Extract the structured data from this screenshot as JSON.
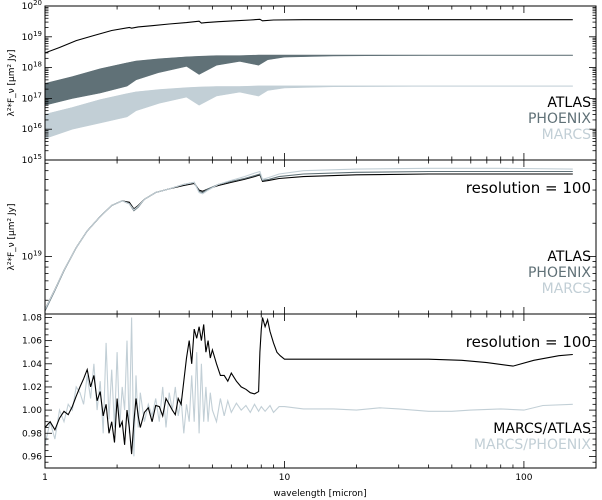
{
  "colors": {
    "atlas": "#000000",
    "phoenix": "#607177",
    "marcs": "#c2cfd6",
    "axis": "#000000"
  },
  "chart_data": [
    {
      "panel": "top",
      "type": "line",
      "xscale": "log",
      "yscale": "log",
      "xlim": [
        1,
        200
      ],
      "ylim": [
        1000000000000000.0,
        1e+20
      ],
      "ylabel": "λ²*F_ν [μm² Jy]",
      "ytick_labels": [
        "10^15",
        "10^16",
        "10^17",
        "10^18",
        "10^19",
        "10^20"
      ],
      "ytick_values": [
        1000000000000000.0,
        1e+16,
        1e+17,
        1e+18,
        1e+19,
        1e+20
      ],
      "legend": {
        "position": "lower-right",
        "entries": [
          "ATLAS",
          "PHOENIX",
          "MARCS"
        ]
      },
      "series": [
        {
          "name": "ATLAS",
          "color_key": "atlas",
          "style": "line",
          "x": [
            1,
            1.15,
            1.35,
            1.6,
            1.9,
            2.25,
            2.3,
            2.45,
            2.8,
            3.3,
            3.9,
            4.4,
            4.5,
            4.7,
            5.3,
            6.2,
            7.2,
            7.9,
            8.1,
            9,
            12,
            20,
            40,
            80,
            160
          ],
          "y": [
            3e+18,
            4.5e+18,
            7.5e+18,
            1.1e+19,
            1.6e+19,
            2e+19,
            1.9e+19,
            2.1e+19,
            2.3e+19,
            2.6e+19,
            2.9e+19,
            3.2e+19,
            2.8e+19,
            2.9e+19,
            3.1e+19,
            3.3e+19,
            3.5e+19,
            3.7e+19,
            3.3e+19,
            3.5e+19,
            3.6e+19,
            3.6e+19,
            3.6e+19,
            3.6e+19,
            3.6e+19
          ]
        },
        {
          "name": "PHOENIX",
          "color_key": "phoenix",
          "style": "band",
          "x": [
            1,
            1.3,
            1.7,
            2.2,
            2.4,
            3.0,
            3.9,
            4.4,
            5.2,
            6.5,
            7.8,
            8.5,
            10,
            16,
            40,
            160
          ],
          "y_top": [
            3e+17,
            5e+17,
            9e+17,
            1.4e+18,
            1.6e+18,
            1.9e+18,
            2.2e+18,
            2.3e+18,
            2.4e+18,
            2.4e+18,
            2.5e+18,
            2.5e+18,
            2.5e+18,
            2.5e+18,
            2.5e+18,
            2.5e+18
          ],
          "y_bottom": [
            6e+16,
            1e+17,
            1.5e+17,
            2.5e+17,
            4e+17,
            7e+17,
            1.1e+18,
            6e+17,
            1.2e+18,
            1.6e+18,
            1.2e+18,
            1.8e+18,
            2.2e+18,
            2.4e+18,
            2.5e+18,
            2.5e+18
          ]
        },
        {
          "name": "MARCS",
          "color_key": "marcs",
          "style": "band",
          "x": [
            1,
            1.3,
            1.7,
            2.2,
            2.4,
            3.0,
            3.9,
            4.4,
            5.2,
            6.5,
            7.8,
            8.5,
            10,
            16,
            40,
            160
          ],
          "y_top": [
            3e+16,
            5e+16,
            9e+16,
            1.4e+17,
            1.6e+17,
            1.9e+17,
            2.2e+17,
            2.3e+17,
            2.4e+17,
            2.4e+17,
            2.5e+17,
            2.5e+17,
            2.5e+17,
            2.5e+17,
            2.5e+17,
            2.5e+17
          ],
          "y_bottom": [
            5000000000000000.0,
            1e+16,
            1.6e+16,
            2.5e+16,
            4e+16,
            7e+16,
            1.1e+17,
            6e+16,
            1.2e+17,
            1.6e+17,
            1.2e+17,
            1.8e+17,
            2.2e+17,
            2.4e+17,
            2.5e+17,
            2.5e+17
          ]
        }
      ]
    },
    {
      "panel": "middle",
      "type": "line",
      "xscale": "log",
      "yscale": "log",
      "xlim": [
        1,
        200
      ],
      "ylim": [
        3e+18,
        7.5e+19
      ],
      "ylabel": "λ²*F_ν [μm² Jy]",
      "ytick_labels": [
        "10^19"
      ],
      "ytick_values": [
        1e+19
      ],
      "annotation": "resolution = 100",
      "legend": {
        "position": "lower-right",
        "entries": [
          "ATLAS",
          "PHOENIX",
          "MARCS"
        ]
      },
      "series": [
        {
          "name": "ATLAS",
          "color_key": "atlas",
          "x": [
            1,
            1.1,
            1.2,
            1.35,
            1.5,
            1.7,
            1.9,
            2.1,
            2.25,
            2.35,
            2.45,
            2.6,
            2.9,
            3.3,
            3.8,
            4.2,
            4.4,
            4.55,
            4.8,
            5.3,
            6.0,
            6.8,
            7.5,
            7.9,
            8.1,
            8.6,
            9.5,
            12,
            20,
            40,
            80,
            160
          ],
          "y": [
            3.3e+18,
            5e+18,
            7.5e+18,
            1.2e+19,
            1.7e+19,
            2.3e+19,
            2.9e+19,
            3.2e+19,
            3.1e+19,
            2.7e+19,
            2.9e+19,
            3.3e+19,
            3.8e+19,
            4.1e+19,
            4.4e+19,
            4.6e+19,
            4e+19,
            3.9e+19,
            4.1e+19,
            4.4e+19,
            4.7e+19,
            5e+19,
            5.3e+19,
            5.5e+19,
            4.8e+19,
            4.9e+19,
            5.1e+19,
            5.3e+19,
            5.5e+19,
            5.6e+19,
            5.6e+19,
            5.6e+19
          ]
        },
        {
          "name": "PHOENIX",
          "color_key": "phoenix",
          "x": [
            1,
            1.1,
            1.2,
            1.35,
            1.5,
            1.7,
            1.9,
            2.1,
            2.25,
            2.35,
            2.45,
            2.6,
            2.9,
            3.3,
            3.8,
            4.2,
            4.4,
            4.55,
            4.8,
            5.3,
            6.0,
            6.8,
            7.5,
            7.9,
            8.1,
            8.6,
            9.5,
            12,
            20,
            40,
            80,
            160
          ],
          "y": [
            3.2e+18,
            4.9e+18,
            7.4e+18,
            1.2e+19,
            1.7e+19,
            2.3e+19,
            2.9e+19,
            3.2e+19,
            3e+19,
            2.6e+19,
            2.8e+19,
            3.3e+19,
            3.8e+19,
            4.1e+19,
            4.5e+19,
            4.7e+19,
            3.9e+19,
            3.8e+19,
            4.1e+19,
            4.5e+19,
            4.8e+19,
            5.1e+19,
            5.4e+19,
            5.6e+19,
            4.9e+19,
            5e+19,
            5.3e+19,
            5.6e+19,
            5.8e+19,
            5.9e+19,
            5.9e+19,
            5.9e+19
          ]
        },
        {
          "name": "MARCS",
          "color_key": "marcs",
          "x": [
            1,
            1.1,
            1.2,
            1.35,
            1.5,
            1.7,
            1.9,
            2.1,
            2.25,
            2.35,
            2.45,
            2.6,
            2.9,
            3.3,
            3.8,
            4.2,
            4.4,
            4.55,
            4.8,
            5.3,
            6.0,
            6.8,
            7.5,
            7.9,
            8.1,
            8.6,
            9.5,
            12,
            20,
            40,
            80,
            160
          ],
          "y": [
            3.3e+18,
            5e+18,
            7.5e+18,
            1.2e+19,
            1.7e+19,
            2.3e+19,
            2.9e+19,
            3.2e+19,
            3e+19,
            2.65e+19,
            2.85e+19,
            3.3e+19,
            3.8e+19,
            4.1e+19,
            4.5e+19,
            4.7e+19,
            3.8e+19,
            3.7e+19,
            4e+19,
            4.5e+19,
            4.9e+19,
            5.3e+19,
            5.7e+19,
            5.9e+19,
            5e+19,
            5.2e+19,
            5.6e+19,
            6e+19,
            6.2e+19,
            6.3e+19,
            6.3e+19,
            6.2e+19
          ]
        }
      ]
    },
    {
      "panel": "bottom",
      "type": "line",
      "xscale": "log",
      "yscale": "linear",
      "xlim": [
        1,
        200
      ],
      "ylim": [
        0.95,
        1.083
      ],
      "xlabel": "wavelength [micron]",
      "xtick_labels": [
        "1",
        "10",
        "100"
      ],
      "xtick_values": [
        1,
        10,
        100
      ],
      "ytick_labels": [
        "0.96",
        "0.98",
        "1.00",
        "1.02",
        "1.04",
        "1.06",
        "1.08"
      ],
      "ytick_values": [
        0.96,
        0.98,
        1.0,
        1.02,
        1.04,
        1.06,
        1.08
      ],
      "annotation": "resolution = 100",
      "legend": {
        "position": "lower-right",
        "entries": [
          "MARCS/ATLAS",
          "MARCS/PHOENIX"
        ]
      },
      "series": [
        {
          "name": "MARCS/ATLAS",
          "color_key": "atlas",
          "x": [
            1,
            1.05,
            1.1,
            1.15,
            1.2,
            1.25,
            1.3,
            1.35,
            1.4,
            1.45,
            1.5,
            1.55,
            1.6,
            1.65,
            1.7,
            1.75,
            1.8,
            1.85,
            1.9,
            1.95,
            2.0,
            2.05,
            2.1,
            2.15,
            2.2,
            2.25,
            2.3,
            2.35,
            2.4,
            2.45,
            2.5,
            2.6,
            2.7,
            2.8,
            2.9,
            3.0,
            3.1,
            3.2,
            3.3,
            3.4,
            3.5,
            3.6,
            3.7,
            3.8,
            3.9,
            4.0,
            4.1,
            4.2,
            4.3,
            4.4,
            4.5,
            4.6,
            4.7,
            4.8,
            4.9,
            5.0,
            5.2,
            5.4,
            5.6,
            5.8,
            6.0,
            6.3,
            6.6,
            6.9,
            7.2,
            7.5,
            7.8,
            7.9,
            8.0,
            8.1,
            8.3,
            8.5,
            8.7,
            9.0,
            9.3,
            9.6,
            10,
            12,
            16,
            20,
            30,
            40,
            55,
            70,
            90,
            110,
            140,
            160
          ],
          "y": [
            0.985,
            0.99,
            0.983,
            0.993,
            0.999,
            0.996,
            1.003,
            1.012,
            1.02,
            1.027,
            1.035,
            1.02,
            1.03,
            1.008,
            1.016,
            0.995,
            1.005,
            0.98,
            0.99,
            0.972,
            1.01,
            0.985,
            0.99,
            0.97,
            1.0,
            0.985,
            0.962,
            0.99,
            1.01,
            0.995,
            0.985,
            0.998,
            1.002,
            0.99,
            1.004,
            1.003,
            0.995,
            1.01,
            1.005,
            1.0,
            0.996,
            1.01,
            1.005,
            1.025,
            1.045,
            1.06,
            1.04,
            1.07,
            1.062,
            1.072,
            1.06,
            1.074,
            1.05,
            1.06,
            1.045,
            1.052,
            1.04,
            1.03,
            1.03,
            1.025,
            1.032,
            1.025,
            1.02,
            1.018,
            1.015,
            1.014,
            1.016,
            1.05,
            1.07,
            1.08,
            1.072,
            1.078,
            1.068,
            1.058,
            1.05,
            1.047,
            1.044,
            1.044,
            1.044,
            1.044,
            1.044,
            1.044,
            1.043,
            1.041,
            1.038,
            1.043,
            1.047,
            1.048
          ]
        },
        {
          "name": "MARCS/PHOENIX",
          "color_key": "marcs",
          "x": [
            1,
            1.05,
            1.1,
            1.15,
            1.2,
            1.25,
            1.3,
            1.35,
            1.4,
            1.45,
            1.5,
            1.55,
            1.6,
            1.65,
            1.7,
            1.75,
            1.8,
            1.85,
            1.9,
            1.95,
            2.0,
            2.05,
            2.1,
            2.15,
            2.2,
            2.25,
            2.3,
            2.35,
            2.4,
            2.45,
            2.5,
            2.6,
            2.7,
            2.8,
            2.9,
            3.0,
            3.1,
            3.2,
            3.3,
            3.4,
            3.5,
            3.6,
            3.7,
            3.8,
            3.9,
            4.0,
            4.1,
            4.2,
            4.3,
            4.4,
            4.5,
            4.6,
            4.7,
            4.8,
            4.9,
            5.0,
            5.2,
            5.4,
            5.6,
            5.8,
            6.0,
            6.3,
            6.6,
            6.9,
            7.2,
            7.5,
            7.8,
            8.0,
            8.3,
            8.7,
            9.0,
            9.5,
            10,
            12,
            16,
            20,
            25,
            30,
            40,
            50,
            60,
            80,
            100,
            120,
            160
          ],
          "y": [
            0.97,
            0.99,
            0.975,
            1.0,
            0.99,
            1.005,
            1.0,
            1.02,
            1.015,
            1.005,
            1.03,
            1.01,
            1.04,
            1.0,
            1.025,
            0.98,
            1.058,
            0.992,
            1.035,
            0.985,
            1.05,
            0.985,
            1.02,
            1.0,
            1.06,
            0.98,
            1.08,
            0.96,
            1.03,
            0.985,
            1.015,
            0.99,
            1.005,
            0.995,
            1.01,
            0.99,
            1.02,
            0.985,
            1.015,
            1.0,
            1.02,
            0.995,
            1.01,
            0.98,
            1.005,
            0.99,
            1.03,
            0.99,
            1.05,
            0.98,
            1.04,
            0.99,
            1.02,
            0.99,
            1.015,
            1.0,
            0.99,
            1.01,
            0.995,
            1.008,
            0.998,
            1.006,
            1.0,
            1.004,
            0.998,
            1.005,
            0.999,
            1.003,
            0.999,
            1.004,
            0.998,
            1.003,
            1.003,
            1.001,
            1.001,
            1.0,
            1.002,
            1.001,
            0.999,
            0.999,
            1.0,
            1.001,
            1.0,
            1.004,
            1.005
          ]
        }
      ]
    }
  ]
}
